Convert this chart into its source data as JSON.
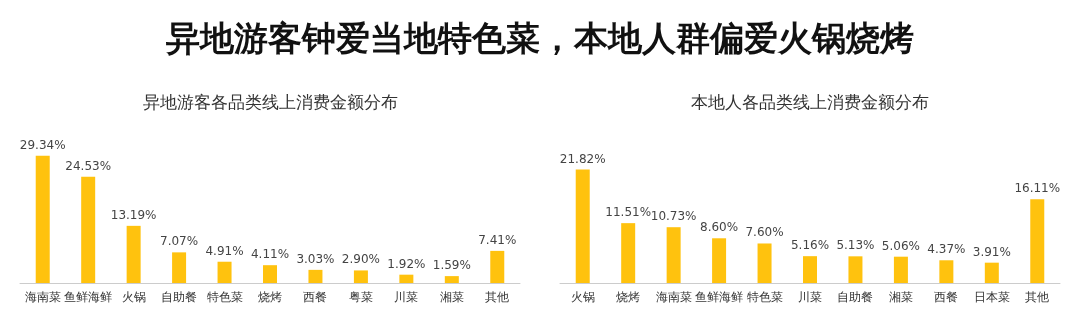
{
  "chart_data": [
    {
      "type": "other",
      "title": "异地游客钟爱当地特色菜，本地人群偏爱火锅烧烤"
    },
    {
      "type": "bar",
      "title": "异地游客各品类线上消费金额分布",
      "categories": [
        "海南菜",
        "鱼鲜海鲜",
        "火锅",
        "自助餐",
        "特色菜",
        "烧烤",
        "西餐",
        "粤菜",
        "川菜",
        "湘菜",
        "其他"
      ],
      "values": [
        29.34,
        24.53,
        13.19,
        7.07,
        4.91,
        4.11,
        3.03,
        2.9,
        1.92,
        1.59,
        7.41
      ],
      "value_labels": [
        "29.34%",
        "24.53%",
        "13.19%",
        "7.07%",
        "4.91%",
        "4.11%",
        "3.03%",
        "2.90%",
        "1.92%",
        "1.59%",
        "7.41%"
      ],
      "color": "#ffc20e",
      "grid": false,
      "tick_labels": "x"
    },
    {
      "type": "bar",
      "title": "本地人各品类线上消费金额分布",
      "categories": [
        "火锅",
        "烧烤",
        "海南菜",
        "鱼鲜海鲜",
        "特色菜",
        "川菜",
        "自助餐",
        "湘菜",
        "西餐",
        "日本菜",
        "其他"
      ],
      "values": [
        21.82,
        11.51,
        10.73,
        8.6,
        7.6,
        5.16,
        5.13,
        5.06,
        4.37,
        3.91,
        16.11
      ],
      "value_labels": [
        "21.82%",
        "11.51%",
        "10.73%",
        "8.60%",
        "7.60%",
        "5.16%",
        "5.13%",
        "5.06%",
        "4.37%",
        "3.91%",
        "16.11%"
      ],
      "color": "#ffc20e",
      "grid": false,
      "tick_labels": "x"
    }
  ]
}
